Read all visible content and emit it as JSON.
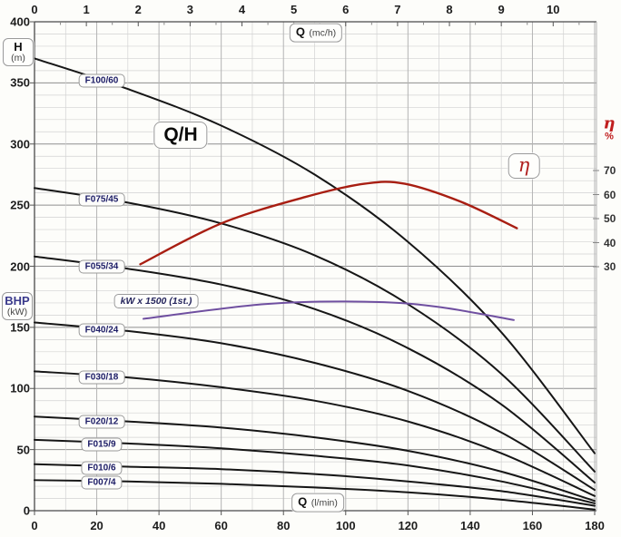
{
  "colors": {
    "background": "#fdfdfa",
    "curve_black": "#161616",
    "efficiency_red": "#a81e12",
    "power_purple": "#6f4fa0",
    "pump_label_navy": "#1c1c66",
    "eta_text_red": "#c01e1e",
    "grid_minor": "#d2d2d2",
    "grid_mid": "#b4b4b4",
    "grid_major": "#8f8f8f",
    "frame": "#4a4a4a",
    "axis_text": "#1d1d1d"
  },
  "labels": {
    "main_title": "Q/H",
    "left_axis_primary": "H",
    "left_axis_primary_unit": "(m)",
    "left_axis_secondary": "BHP",
    "left_axis_secondary_unit": "(kW)",
    "top_axis": "Q",
    "top_axis_unit": "(mc/h)",
    "bottom_axis": "Q",
    "bottom_axis_unit": "(l/min)",
    "right_axis_symbol": "η",
    "right_axis_unit": "%",
    "efficiency_label": "η",
    "power_label": "kW x 1500 (1st.)"
  },
  "chart_data": {
    "type": "line",
    "title": "Q/H",
    "x_bottom_axis": {
      "label": "Q (l/min)",
      "ticks": [
        0,
        20,
        40,
        60,
        80,
        100,
        120,
        140,
        160,
        180
      ],
      "range": [
        0,
        180
      ]
    },
    "x_top_axis": {
      "label": "Q (mc/h)",
      "ticks": [
        0,
        1,
        2,
        3,
        4,
        5,
        6,
        7,
        8,
        9,
        10
      ],
      "range": [
        0,
        10.8
      ]
    },
    "y_left_axis": {
      "label": "H (m) / BHP (kW)",
      "ticks": [
        400,
        350,
        300,
        250,
        200,
        150,
        100,
        50,
        0
      ],
      "range": [
        0,
        400
      ]
    },
    "y_right_axis": {
      "label": "η %",
      "ticks": [
        70,
        60,
        50,
        40,
        30
      ]
    },
    "grid": "on",
    "q_lmin": [
      0,
      30,
      60,
      90,
      120,
      150,
      180
    ],
    "series": [
      {
        "name": "F100/60",
        "h_m": [
          370,
          345,
          315,
          275,
          220,
          146,
          47
        ]
      },
      {
        "name": "F075/45",
        "h_m": [
          264,
          252,
          235,
          209,
          169,
          112,
          32
        ]
      },
      {
        "name": "F055/34",
        "h_m": [
          208,
          198,
          185,
          165,
          133,
          87,
          23
        ]
      },
      {
        "name": "F040/24",
        "h_m": [
          154,
          147,
          137,
          121,
          98,
          64,
          17
        ]
      },
      {
        "name": "F030/18",
        "h_m": [
          114,
          109,
          101,
          90,
          73,
          47,
          12
        ]
      },
      {
        "name": "F020/12",
        "h_m": [
          77,
          73,
          68,
          60,
          49,
          32,
          8
        ]
      },
      {
        "name": "F015/9",
        "h_m": [
          58,
          55,
          51,
          45,
          37,
          24,
          6
        ]
      },
      {
        "name": "F010/6",
        "h_m": [
          38,
          36,
          34,
          30,
          24,
          16,
          4
        ]
      },
      {
        "name": "F007/4",
        "h_m": [
          25,
          24,
          22,
          19,
          15,
          9,
          1
        ]
      }
    ],
    "efficiency_curve": {
      "name": "η",
      "q_lmin": [
        34,
        60,
        87,
        106,
        119,
        137,
        155
      ],
      "eta_pct": [
        31,
        48,
        59,
        64.5,
        64.5,
        57,
        46
      ]
    },
    "power_curve": {
      "name": "kW x 1500 (1st.)",
      "q_lmin": [
        35,
        74,
        106,
        129,
        154
      ],
      "value_on_left_scale": [
        157,
        169,
        171,
        167,
        156
      ]
    }
  }
}
